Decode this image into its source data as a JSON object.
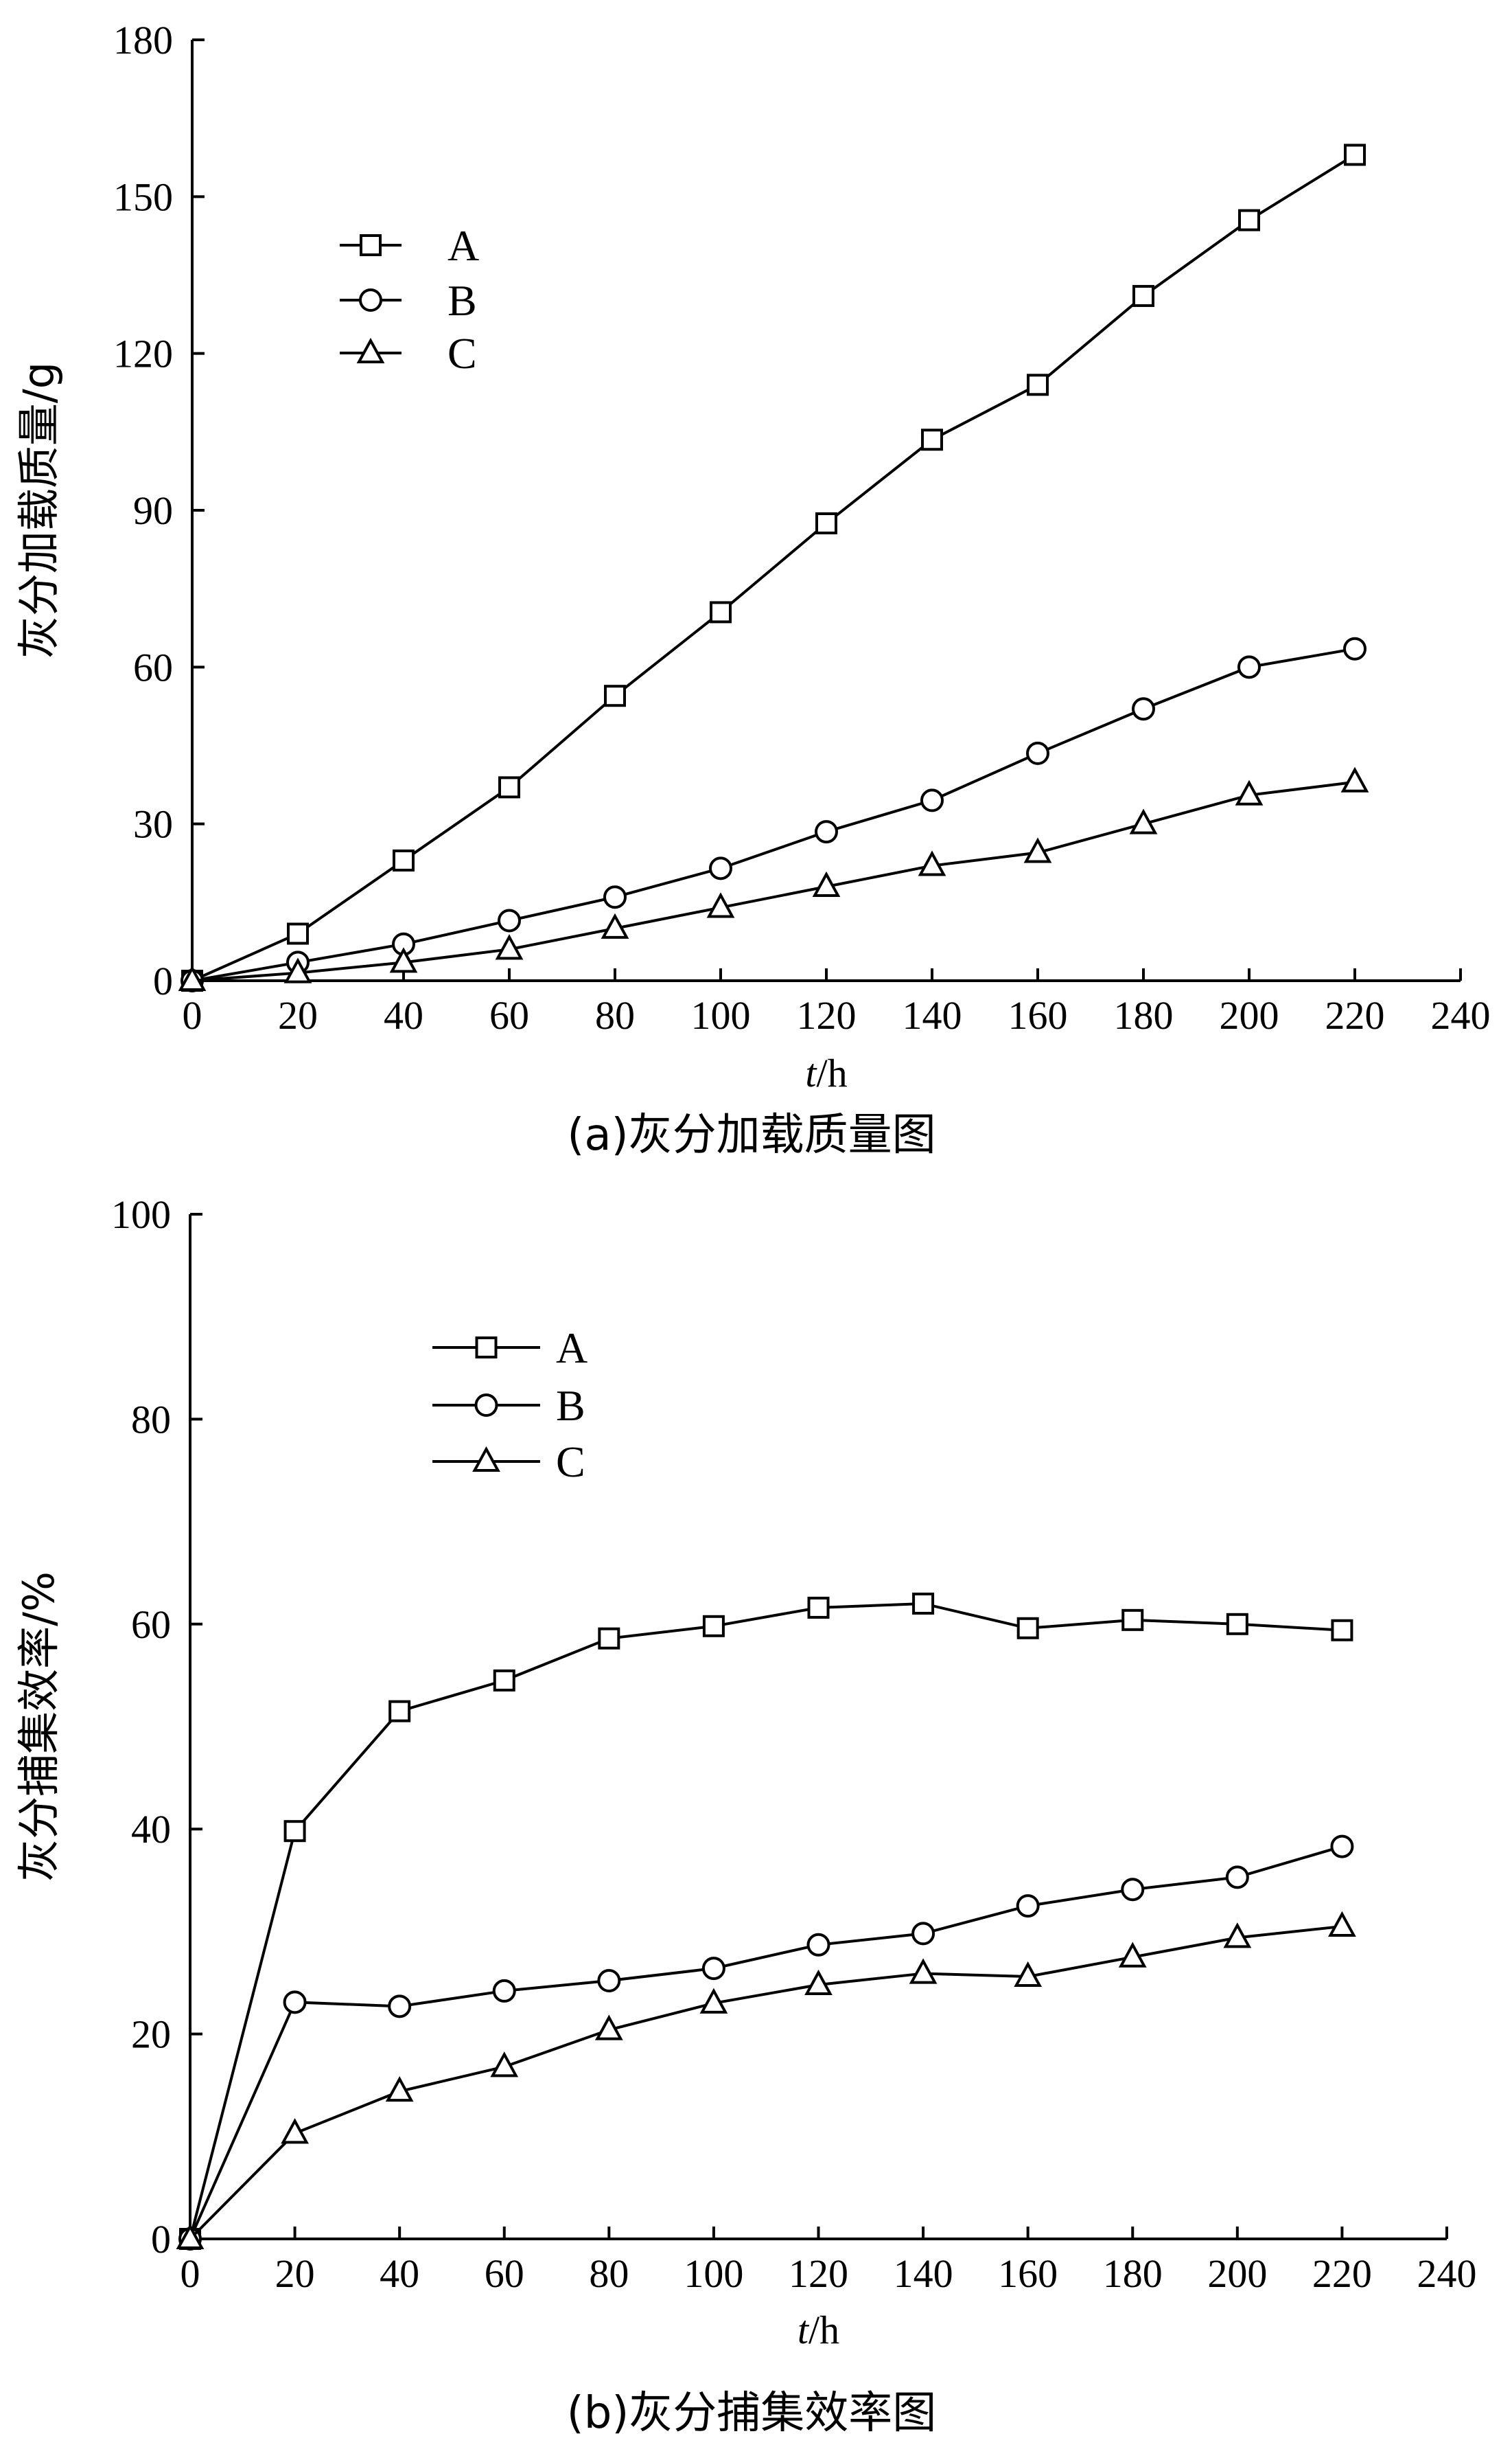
{
  "chart_data": [
    {
      "type": "line",
      "caption": "(a)灰分加载质量图",
      "xlabel_italic": "t",
      "xlabel_unit": "/h",
      "ylabel": "灰分加载质量/g",
      "xlim": [
        0,
        240
      ],
      "ylim": [
        0,
        180
      ],
      "xticks": [
        0,
        20,
        40,
        60,
        80,
        100,
        120,
        140,
        160,
        180,
        200,
        220,
        240
      ],
      "yticks": [
        0,
        30,
        60,
        90,
        120,
        150,
        180
      ],
      "legend_position": "upper-left",
      "x": [
        0,
        20,
        40,
        60,
        80,
        100,
        120,
        140,
        160,
        180,
        200,
        220
      ],
      "series": [
        {
          "name": "A",
          "marker": "square",
          "values": [
            0,
            9,
            23,
            37,
            54.5,
            70.5,
            87.5,
            103.5,
            114,
            131,
            145.5,
            158
          ]
        },
        {
          "name": "B",
          "marker": "circle",
          "values": [
            0,
            3.5,
            7,
            11.5,
            16,
            21.5,
            28.5,
            34.5,
            43.5,
            52,
            60,
            63.5
          ]
        },
        {
          "name": "C",
          "marker": "triangle",
          "values": [
            0,
            1.5,
            3.5,
            6,
            10,
            14,
            18,
            22,
            24.5,
            30,
            35.5,
            38
          ]
        }
      ]
    },
    {
      "type": "line",
      "caption": "(b)灰分捕集效率图",
      "xlabel_italic": "t",
      "xlabel_unit": "/h",
      "ylabel": "灰分捕集效率/%",
      "xlim": [
        0,
        240
      ],
      "ylim": [
        0,
        100
      ],
      "xticks": [
        0,
        20,
        40,
        60,
        80,
        100,
        120,
        140,
        160,
        180,
        200,
        220,
        240
      ],
      "yticks": [
        0,
        20,
        40,
        60,
        80,
        100
      ],
      "legend_position": "upper-left",
      "x": [
        0,
        20,
        40,
        60,
        80,
        100,
        120,
        140,
        160,
        180,
        200,
        220
      ],
      "series": [
        {
          "name": "A",
          "marker": "square",
          "values": [
            0,
            39.8,
            51.5,
            54.5,
            58.6,
            59.8,
            61.6,
            62,
            59.6,
            60.4,
            60,
            59.4
          ]
        },
        {
          "name": "B",
          "marker": "circle",
          "values": [
            0,
            23.1,
            22.7,
            24.2,
            25.2,
            26.4,
            28.7,
            29.8,
            32.5,
            34.1,
            35.3,
            38.3
          ]
        },
        {
          "name": "C",
          "marker": "triangle",
          "values": [
            0,
            10.3,
            14.4,
            16.8,
            20.4,
            23,
            24.8,
            25.9,
            25.6,
            27.5,
            29.4,
            30.5
          ]
        }
      ]
    }
  ]
}
